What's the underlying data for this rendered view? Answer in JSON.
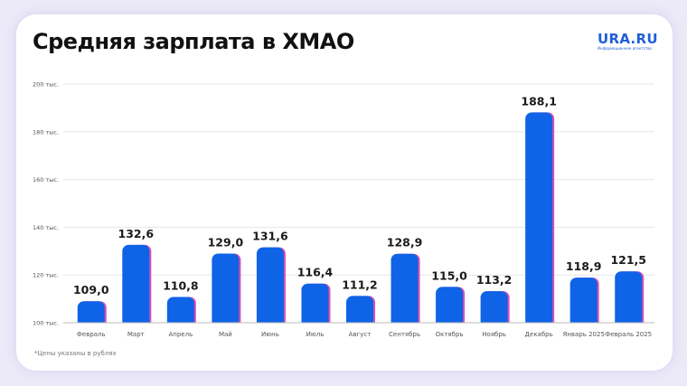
{
  "title": "Средняя зарплата в ХМАО",
  "logo": {
    "main": "URA.RU",
    "sub": "Информационное агентство"
  },
  "footnote": "*Цены указаны в рублях",
  "colors": {
    "bar": "#0f63e6",
    "bar_shadow": "#d94fb3",
    "grid": "#e6e6e6",
    "axis": "#bbbbbb"
  },
  "chart_data": {
    "type": "bar",
    "title": "Средняя зарплата в ХМАО",
    "xlabel": "",
    "ylabel": "",
    "ylim": [
      100,
      200
    ],
    "yticks": [
      100,
      120,
      140,
      160,
      180,
      200
    ],
    "ytick_labels": [
      "100 тыс.",
      "120 тыс.",
      "140 тыс.",
      "160 тыс.",
      "180 тыс.",
      "200 тыс."
    ],
    "grid": true,
    "categories": [
      "Февраль",
      "Март",
      "Апрель",
      "Май",
      "Июнь",
      "Июль",
      "Август",
      "Сентябрь",
      "Октябрь",
      "Ноябрь",
      "Декабрь",
      "Январь 2025",
      "Февраль 2025"
    ],
    "values": [
      109.0,
      132.6,
      110.8,
      129.0,
      131.6,
      116.4,
      111.2,
      128.9,
      115.0,
      113.2,
      188.1,
      118.9,
      121.5
    ],
    "value_labels": [
      "109,0",
      "132,6",
      "110,8",
      "129,0",
      "131,6",
      "116,4",
      "111,2",
      "128,9",
      "115,0",
      "113,2",
      "188,1",
      "118,9",
      "121,5"
    ]
  }
}
